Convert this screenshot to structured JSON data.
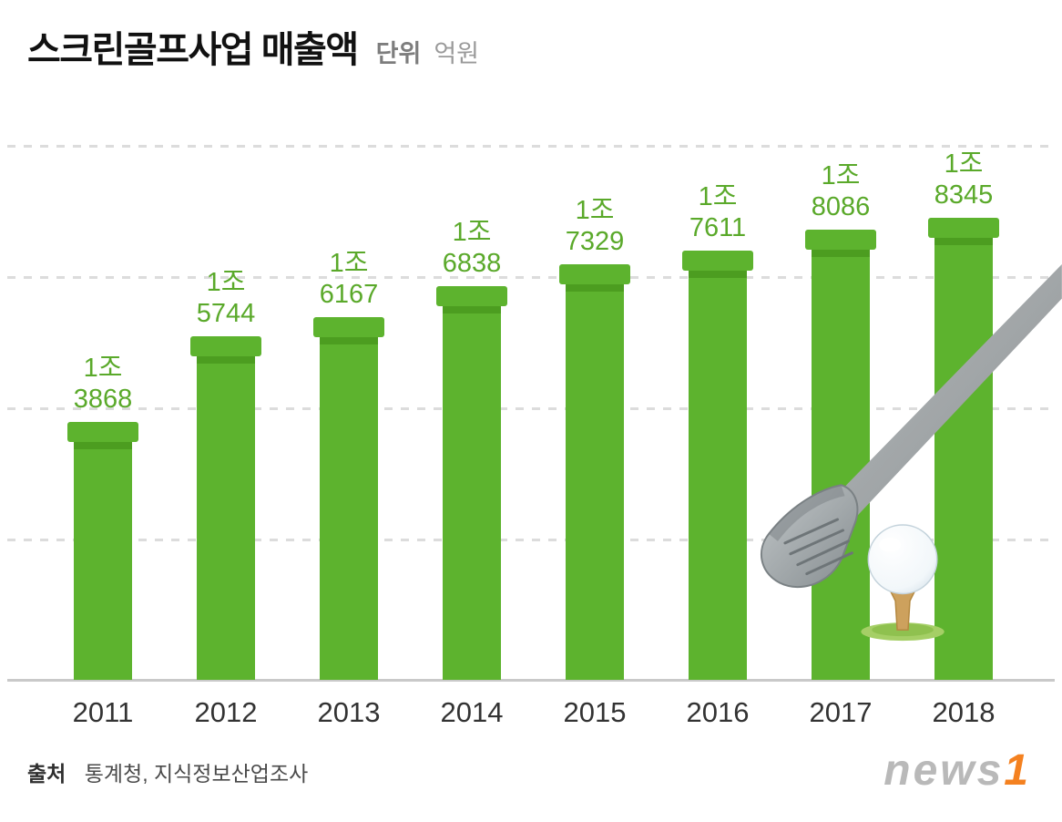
{
  "header": {
    "title": "스크린골프사업 매출액",
    "unit_label": "단위",
    "unit_value": "억원"
  },
  "source": {
    "prefix": "출처",
    "text": "통계청, 지식정보산업조사"
  },
  "logo": {
    "gray_part": "news",
    "orange_part": "1"
  },
  "colors": {
    "bar_green": "#5db32e",
    "bar_green_dark": "#4c9d20",
    "label_green": "#5aa92a",
    "grid_gray": "#dcdcdc",
    "axis_gray": "#c9c9c9",
    "logo_gray": "#b9b9b9",
    "logo_orange": "#f48120"
  },
  "chart_data": {
    "type": "bar",
    "title": "스크린골프사업 매출액",
    "unit": "억원",
    "categories": [
      "2011",
      "2012",
      "2013",
      "2014",
      "2015",
      "2016",
      "2017",
      "2018"
    ],
    "values": [
      13868,
      15744,
      16167,
      16838,
      17329,
      17611,
      18086,
      18345
    ],
    "bar_labels": [
      [
        "1조",
        "3868"
      ],
      [
        "1조",
        "5744"
      ],
      [
        "1조",
        "6167"
      ],
      [
        "1조",
        "6838"
      ],
      [
        "1조",
        "7329"
      ],
      [
        "1조",
        "7611"
      ],
      [
        "1조",
        "8086"
      ],
      [
        "1조",
        "8345"
      ]
    ],
    "ylim": [
      8200,
      20000
    ],
    "grid": "dashed-horizontal",
    "legend": "none",
    "xlabel": "",
    "ylabel": ""
  }
}
